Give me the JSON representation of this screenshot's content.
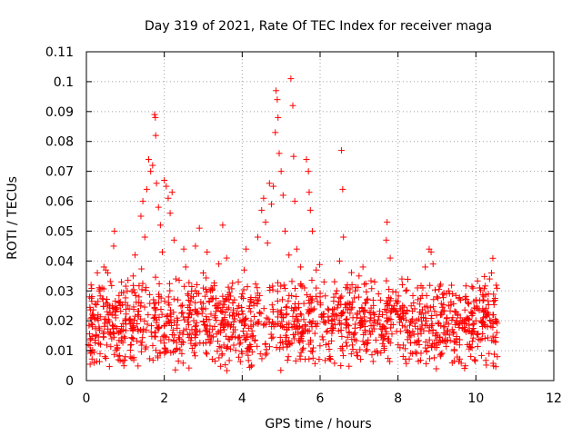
{
  "chart_data": {
    "type": "scatter",
    "title": "Day 319 of 2021, Rate Of TEC Index for receiver maga",
    "xlabel": "GPS time / hours",
    "ylabel": "ROTI / TECUs",
    "xlim": [
      0,
      12
    ],
    "ylim": [
      0,
      0.11
    ],
    "xticks": [
      "0",
      "2",
      "4",
      "6",
      "8",
      "10",
      "12"
    ],
    "yticks": [
      "0",
      "0.01",
      "0.02",
      "0.03",
      "0.04",
      "0.05",
      "0.06",
      "0.07",
      "0.08",
      "0.09",
      "0.1",
      "0.11"
    ],
    "grid": true,
    "marker": "plus",
    "color": "#ff0000",
    "points": [
      [
        0.05,
        0.012
      ],
      [
        0.08,
        0.028
      ],
      [
        0.12,
        0.032
      ],
      [
        0.15,
        0.018
      ],
      [
        0.2,
        0.006
      ],
      [
        0.25,
        0.015
      ],
      [
        0.3,
        0.022
      ],
      [
        0.35,
        0.009
      ],
      [
        0.4,
        0.031
      ],
      [
        0.45,
        0.038
      ],
      [
        0.5,
        0.037
      ],
      [
        0.55,
        0.036
      ],
      [
        0.6,
        0.025
      ],
      [
        0.65,
        0.014
      ],
      [
        0.7,
        0.045
      ],
      [
        0.72,
        0.05
      ],
      [
        0.75,
        0.021
      ],
      [
        0.8,
        0.011
      ],
      [
        0.85,
        0.026
      ],
      [
        0.9,
        0.033
      ],
      [
        0.95,
        0.017
      ],
      [
        1.0,
        0.008
      ],
      [
        1.05,
        0.03
      ],
      [
        1.1,
        0.024
      ],
      [
        1.15,
        0.012
      ],
      [
        1.2,
        0.035
      ],
      [
        1.25,
        0.042
      ],
      [
        1.3,
        0.019
      ],
      [
        1.35,
        0.028
      ],
      [
        1.4,
        0.055
      ],
      [
        1.45,
        0.06
      ],
      [
        1.5,
        0.048
      ],
      [
        1.55,
        0.064
      ],
      [
        1.6,
        0.074
      ],
      [
        1.65,
        0.07
      ],
      [
        1.7,
        0.072
      ],
      [
        1.75,
        0.089
      ],
      [
        1.77,
        0.088
      ],
      [
        1.78,
        0.082
      ],
      [
        1.8,
        0.066
      ],
      [
        1.85,
        0.058
      ],
      [
        1.9,
        0.052
      ],
      [
        1.95,
        0.043
      ],
      [
        2.0,
        0.067
      ],
      [
        2.05,
        0.065
      ],
      [
        2.1,
        0.061
      ],
      [
        2.15,
        0.056
      ],
      [
        2.2,
        0.063
      ],
      [
        2.25,
        0.047
      ],
      [
        2.3,
        0.034
      ],
      [
        2.35,
        0.027
      ],
      [
        2.4,
        0.016
      ],
      [
        2.45,
        0.009
      ],
      [
        2.5,
        0.044
      ],
      [
        2.55,
        0.038
      ],
      [
        2.6,
        0.029
      ],
      [
        2.7,
        0.022
      ],
      [
        2.8,
        0.045
      ],
      [
        2.9,
        0.051
      ],
      [
        3.0,
        0.036
      ],
      [
        3.1,
        0.043
      ],
      [
        3.2,
        0.031
      ],
      [
        3.3,
        0.025
      ],
      [
        3.4,
        0.039
      ],
      [
        3.5,
        0.052
      ],
      [
        3.6,
        0.041
      ],
      [
        3.7,
        0.018
      ],
      [
        3.8,
        0.027
      ],
      [
        3.9,
        0.033
      ],
      [
        4.0,
        0.029
      ],
      [
        4.05,
        0.037
      ],
      [
        4.1,
        0.044
      ],
      [
        4.2,
        0.012
      ],
      [
        4.3,
        0.026
      ],
      [
        4.4,
        0.048
      ],
      [
        4.5,
        0.057
      ],
      [
        4.55,
        0.061
      ],
      [
        4.6,
        0.053
      ],
      [
        4.65,
        0.046
      ],
      [
        4.7,
        0.066
      ],
      [
        4.75,
        0.059
      ],
      [
        4.8,
        0.065
      ],
      [
        4.85,
        0.083
      ],
      [
        4.87,
        0.097
      ],
      [
        4.9,
        0.094
      ],
      [
        4.92,
        0.088
      ],
      [
        4.95,
        0.076
      ],
      [
        5.0,
        0.07
      ],
      [
        5.05,
        0.062
      ],
      [
        5.1,
        0.05
      ],
      [
        5.2,
        0.042
      ],
      [
        5.25,
        0.101
      ],
      [
        5.3,
        0.092
      ],
      [
        5.32,
        0.075
      ],
      [
        5.35,
        0.06
      ],
      [
        5.4,
        0.044
      ],
      [
        5.5,
        0.038
      ],
      [
        5.6,
        0.031
      ],
      [
        5.65,
        0.074
      ],
      [
        5.7,
        0.07
      ],
      [
        5.72,
        0.063
      ],
      [
        5.75,
        0.057
      ],
      [
        5.8,
        0.05
      ],
      [
        5.9,
        0.037
      ],
      [
        6.0,
        0.028
      ],
      [
        6.1,
        0.033
      ],
      [
        6.2,
        0.024
      ],
      [
        6.3,
        0.019
      ],
      [
        6.4,
        0.029
      ],
      [
        6.5,
        0.04
      ],
      [
        6.55,
        0.077
      ],
      [
        6.58,
        0.064
      ],
      [
        6.6,
        0.048
      ],
      [
        6.7,
        0.032
      ],
      [
        6.8,
        0.024
      ],
      [
        6.9,
        0.03
      ],
      [
        7.0,
        0.035
      ],
      [
        7.1,
        0.038
      ],
      [
        7.2,
        0.027
      ],
      [
        7.3,
        0.021
      ],
      [
        7.4,
        0.033
      ],
      [
        7.5,
        0.029
      ],
      [
        7.6,
        0.018
      ],
      [
        7.7,
        0.047
      ],
      [
        7.72,
        0.053
      ],
      [
        7.8,
        0.041
      ],
      [
        7.9,
        0.025
      ],
      [
        8.0,
        0.022
      ],
      [
        8.1,
        0.034
      ],
      [
        8.2,
        0.03
      ],
      [
        8.3,
        0.016
      ],
      [
        8.4,
        0.026
      ],
      [
        8.5,
        0.031
      ],
      [
        8.6,
        0.02
      ],
      [
        8.7,
        0.038
      ],
      [
        8.8,
        0.044
      ],
      [
        8.85,
        0.043
      ],
      [
        8.9,
        0.039
      ],
      [
        9.0,
        0.028
      ],
      [
        9.1,
        0.022
      ],
      [
        9.2,
        0.018
      ],
      [
        9.3,
        0.025
      ],
      [
        9.4,
        0.029
      ],
      [
        9.5,
        0.014
      ],
      [
        9.6,
        0.021
      ],
      [
        9.7,
        0.017
      ],
      [
        9.8,
        0.026
      ],
      [
        9.9,
        0.011
      ],
      [
        10.0,
        0.02
      ],
      [
        10.1,
        0.031
      ],
      [
        10.2,
        0.027
      ],
      [
        10.3,
        0.018
      ],
      [
        10.35,
        0.034
      ],
      [
        10.4,
        0.036
      ],
      [
        10.45,
        0.022
      ],
      [
        10.5,
        0.013
      ],
      [
        10.55,
        0.008
      ]
    ],
    "band": {
      "note": "dense cloud of points filling the lower region",
      "x_range": [
        0.05,
        10.55
      ],
      "y_range": [
        0.003,
        0.035
      ],
      "count": 1400
    }
  }
}
